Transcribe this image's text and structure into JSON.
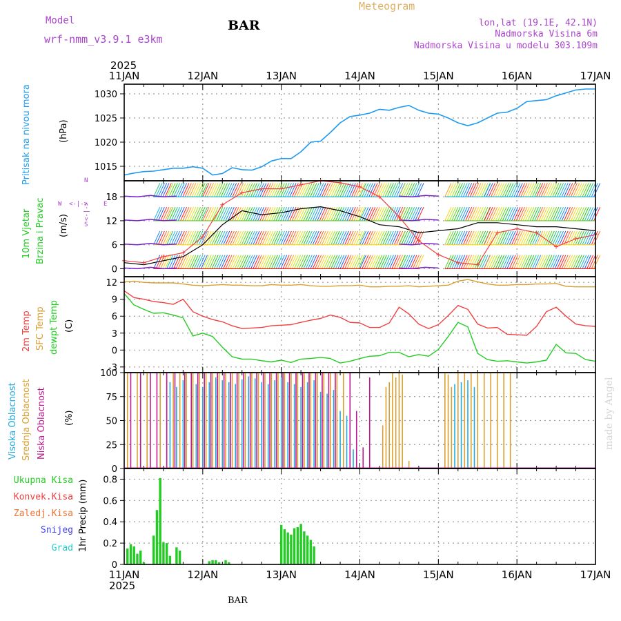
{
  "header": {
    "model_label": "Model",
    "model_name": "wrf-nmm_v3.9.1 e3km",
    "station": "BAR",
    "product": "Meteogram",
    "lonlat": "lon,lat (19.1E, 42.1N)",
    "elevation": "Nadmorska Visina 6m",
    "model_elevation": "Nadmorska Visina u modelu 303.109m",
    "year_top": "2025",
    "year_bottom": "2025",
    "footer_station": "BAR",
    "watermark": "made by Angel"
  },
  "colors": {
    "pressure": "#1e9bf0",
    "t2m": "#f04040",
    "sfc": "#d9a030",
    "dew": "#22cc22",
    "high_cloud": "#22aadd",
    "mid_cloud": "#d9a030",
    "low_cloud": "#c01890",
    "precip_total": "#22cc22",
    "conv": "#f04040",
    "freezing": "#f07030",
    "snow": "#4444ee",
    "hail": "#22cccc",
    "model": "#aa44cc",
    "product": "#e0b060",
    "wind_mark": "#7a22cc",
    "speed_line": "#000000",
    "grid": "#999999",
    "frame": "#000000"
  },
  "chart_data": [
    {
      "type": "line",
      "id": "pressure",
      "ylabel_side": "Pritisak na nivou mora",
      "ylabel": "(hPa)",
      "ylim": [
        1012,
        1032
      ],
      "yticks": [
        1015,
        1020,
        1025,
        1030
      ],
      "tick_labels": [
        "11JAN",
        "12JAN",
        "13JAN",
        "14JAN",
        "15JAN",
        "16JAN",
        "17JAN"
      ],
      "x_hours": [
        0,
        3,
        6,
        9,
        12,
        15,
        18,
        21,
        24,
        27,
        30,
        33,
        36,
        39,
        42,
        45,
        48,
        51,
        54,
        57,
        60,
        63,
        66,
        69,
        72,
        75,
        78,
        81,
        84,
        87,
        90,
        93,
        96,
        99,
        102,
        105,
        108,
        111,
        114,
        117,
        120,
        123,
        126,
        129,
        132,
        135,
        138,
        141,
        144
      ],
      "series": [
        {
          "name": "Pritisak",
          "values": [
            1013.2,
            1013.6,
            1013.9,
            1014.0,
            1014.3,
            1014.6,
            1014.6,
            1014.9,
            1014.6,
            1013.2,
            1013.5,
            1014.7,
            1014.3,
            1014.2,
            1014.9,
            1016.1,
            1016.6,
            1016.6,
            1018.0,
            1020.0,
            1020.2,
            1022.0,
            1024.0,
            1025.3,
            1025.6,
            1026.0,
            1026.8,
            1026.6,
            1027.2,
            1027.6,
            1026.6,
            1026.0,
            1025.8,
            1025.0,
            1024.0,
            1023.4,
            1024.0,
            1025.0,
            1026.0,
            1026.2,
            1027.0,
            1028.4,
            1028.6,
            1028.8,
            1029.6,
            1030.2,
            1030.8,
            1031.0,
            1031.0
          ]
        }
      ]
    },
    {
      "type": "barbs",
      "id": "wind",
      "ylabel_side": [
        "10m Vjetar",
        "Brzina i Pravac"
      ],
      "ylabel": "(m/s)",
      "compass": {
        "n": "N",
        "w": "W",
        "e": "E",
        "s": "S",
        "glyph_h": "<-|->",
        "glyph_v": "<-|->"
      },
      "ylim": [
        -2,
        22
      ],
      "yticks": [
        0,
        6,
        12,
        18
      ],
      "levels": [
        0,
        6,
        12,
        18
      ],
      "x_hours": [
        0,
        6,
        12,
        18,
        24,
        30,
        36,
        42,
        48,
        54,
        60,
        66,
        72,
        78,
        84,
        90,
        96,
        102,
        108,
        114,
        120,
        126,
        132,
        138,
        144
      ],
      "speed": [
        1.5,
        1.0,
        2.0,
        3.0,
        6.0,
        11.0,
        14.5,
        13.5,
        14.0,
        15.0,
        15.5,
        14.5,
        13.0,
        11.0,
        10.5,
        9.0,
        9.5,
        10.0,
        11.5,
        11.5,
        11.0,
        10.5,
        10.5,
        10.0,
        9.5
      ],
      "gust": [
        2.0,
        1.5,
        3.0,
        4.0,
        8.0,
        16.0,
        19.0,
        20.0,
        20.0,
        21.0,
        22.0,
        21.5,
        20.5,
        18.0,
        13.0,
        7.0,
        3.5,
        1.5,
        1.0,
        9.0,
        10.0,
        9.0,
        5.5,
        7.5,
        8.5
      ],
      "barb_color_sequence": [
        "#ff1a1a",
        "#ff5a1a",
        "#ff9a1a",
        "#ffd21a",
        "#d2e61a",
        "#9ae61a",
        "#5ad21a",
        "#1ac81a",
        "#1ac86e",
        "#1ab4d2",
        "#1a8cf0",
        "#1a5af0"
      ],
      "active_windows": [
        [
          9,
          13
        ],
        [
          13,
          24
        ],
        [
          24,
          72
        ],
        [
          72,
          84
        ],
        [
          84,
          90
        ],
        [
          98,
          110
        ],
        [
          110,
          126
        ],
        [
          126,
          144
        ]
      ]
    },
    {
      "type": "line",
      "id": "temperature",
      "ylabel_side": [
        "2m Temp",
        "SFC Temp",
        "dewpt Temp"
      ],
      "ylabel": "(C)",
      "ylim": [
        -4,
        13
      ],
      "yticks": [
        -3,
        0,
        3,
        6,
        9,
        12
      ],
      "x_hours": [
        0,
        3,
        6,
        9,
        12,
        15,
        18,
        21,
        24,
        27,
        30,
        33,
        36,
        39,
        42,
        45,
        48,
        51,
        54,
        57,
        60,
        63,
        66,
        69,
        72,
        75,
        78,
        81,
        84,
        87,
        90,
        93,
        96,
        99,
        102,
        105,
        108,
        111,
        114,
        117,
        120,
        123,
        126,
        129,
        132,
        135,
        138,
        141,
        144
      ],
      "series": [
        {
          "name": "SFC Temp",
          "key": "sfc",
          "values": [
            12.1,
            12.2,
            12.0,
            11.9,
            11.9,
            11.9,
            11.7,
            11.5,
            11.4,
            11.5,
            11.6,
            11.5,
            11.5,
            11.4,
            11.4,
            11.6,
            11.5,
            11.5,
            11.6,
            11.4,
            11.3,
            11.3,
            11.4,
            11.4,
            11.5,
            11.2,
            11.2,
            11.3,
            11.3,
            11.4,
            11.2,
            11.3,
            11.4,
            11.5,
            12.2,
            12.5,
            12.1,
            11.7,
            11.5,
            11.5,
            11.6,
            11.6,
            11.7,
            11.7,
            11.8,
            11.3,
            11.2,
            11.2,
            11.2
          ]
        },
        {
          "name": "2m Temp",
          "key": "t2m",
          "values": [
            10.5,
            9.3,
            9.0,
            8.6,
            8.4,
            8.1,
            9.0,
            6.8,
            6.0,
            5.4,
            5.0,
            4.3,
            3.8,
            3.9,
            4.0,
            4.3,
            4.4,
            4.5,
            4.9,
            5.3,
            5.6,
            6.2,
            5.8,
            4.9,
            4.8,
            4.0,
            4.0,
            4.8,
            7.6,
            6.4,
            4.6,
            3.8,
            4.5,
            6.1,
            7.9,
            7.2,
            4.6,
            3.9,
            4.0,
            2.8,
            2.7,
            2.6,
            4.2,
            6.8,
            7.6,
            6.0,
            4.6,
            4.3,
            4.2
          ]
        },
        {
          "name": "dewpt Temp",
          "key": "dew",
          "values": [
            10.0,
            8.0,
            7.2,
            6.5,
            6.6,
            6.2,
            5.7,
            2.5,
            3.0,
            2.4,
            0.5,
            -1.2,
            -1.6,
            -1.6,
            -1.9,
            -2.1,
            -1.8,
            -2.2,
            -1.6,
            -1.5,
            -1.3,
            -1.5,
            -2.3,
            -2.0,
            -1.5,
            -1.1,
            -1.0,
            -0.4,
            -0.4,
            -1.2,
            -0.8,
            -1.1,
            0.1,
            2.4,
            4.9,
            4.1,
            -0.6,
            -1.7,
            -2.0,
            -1.9,
            -2.1,
            -2.3,
            -2.1,
            -1.8,
            1.0,
            -0.5,
            -0.6,
            -1.7,
            -2.0
          ]
        }
      ]
    },
    {
      "type": "bar",
      "id": "cloud",
      "ylabel_side": [
        "Visoka Oblacnost",
        "Srednja Oblacnost",
        "Niska Oblacnost"
      ],
      "ylabel": "(%)",
      "ylim": [
        0,
        100
      ],
      "yticks": [
        0,
        25,
        50,
        75,
        100
      ],
      "series": [
        {
          "name": "Visoka Oblacnost",
          "key": "high_cloud",
          "hours": [
            14,
            16,
            18,
            22,
            24,
            26,
            28,
            30,
            32,
            34,
            36,
            38,
            40,
            42,
            44,
            46,
            48,
            50,
            52,
            54,
            56,
            58,
            60,
            62,
            64,
            66,
            68,
            70,
            101,
            103,
            105,
            107
          ],
          "values": [
            90,
            85,
            92,
            88,
            85,
            90,
            95,
            92,
            90,
            88,
            93,
            96,
            94,
            90,
            88,
            92,
            95,
            90,
            88,
            85,
            90,
            92,
            80,
            78,
            82,
            60,
            55,
            20,
            88,
            90,
            92,
            85
          ]
        },
        {
          "name": "Srednja Oblacnost",
          "key": "mid_cloud",
          "hours": [
            1,
            4,
            7,
            11,
            15,
            17,
            19,
            21,
            23,
            25,
            27,
            29,
            31,
            33,
            35,
            37,
            39,
            41,
            43,
            45,
            47,
            49,
            51,
            53,
            55,
            57,
            59,
            61,
            63,
            65,
            67,
            79,
            80,
            81,
            82,
            83,
            84,
            85,
            87,
            98,
            99,
            100,
            102,
            104,
            106,
            108,
            110,
            112,
            114,
            116,
            118
          ],
          "values": [
            100,
            100,
            100,
            100,
            100,
            100,
            100,
            100,
            100,
            100,
            100,
            100,
            100,
            100,
            100,
            100,
            100,
            100,
            100,
            100,
            100,
            100,
            100,
            100,
            100,
            100,
            100,
            100,
            100,
            100,
            100,
            45,
            85,
            90,
            100,
            95,
            100,
            98,
            8,
            100,
            98,
            85,
            100,
            100,
            100,
            100,
            100,
            100,
            100,
            100,
            100
          ]
        },
        {
          "name": "Niska Oblacnost",
          "key": "low_cloud",
          "hours": [
            2,
            5,
            8,
            10,
            13,
            15.5,
            18.5,
            20.5,
            22.5,
            24.5,
            26.5,
            28.5,
            30.5,
            32.5,
            34.5,
            36.5,
            38.5,
            40.5,
            42.5,
            44.5,
            46.5,
            48.5,
            50.5,
            52.5,
            54.5,
            56.5,
            58.5,
            60.5,
            62.5,
            64.5,
            69,
            71,
            73,
            75
          ],
          "values": [
            100,
            100,
            100,
            100,
            100,
            100,
            100,
            100,
            100,
            100,
            100,
            100,
            100,
            100,
            100,
            100,
            100,
            100,
            100,
            100,
            100,
            100,
            100,
            100,
            100,
            100,
            100,
            100,
            100,
            100,
            100,
            60,
            22,
            95
          ]
        }
      ]
    },
    {
      "type": "bar",
      "id": "precip",
      "ylabel": "1hr Precip (mm)",
      "legend": [
        "Ukupna Kisa",
        "Konvek.Kisa",
        "Zaledj.Kisa",
        "Snijeg",
        "Grad"
      ],
      "ylim": [
        0,
        0.9
      ],
      "yticks": [
        0,
        0.2,
        0.4,
        0.6,
        0.8
      ],
      "ytick_labels": [
        "0",
        "0.2",
        "0.4",
        "0.6",
        "0.8"
      ],
      "tick_labels": [
        "11JAN",
        "12JAN",
        "13JAN",
        "14JAN",
        "15JAN",
        "16JAN",
        "17JAN"
      ],
      "hours": [
        1,
        2,
        3,
        4,
        5,
        6,
        9,
        10,
        11,
        12,
        13,
        14,
        16,
        17,
        26,
        27,
        28,
        29,
        31,
        32,
        48,
        49,
        50,
        51,
        52,
        53,
        54,
        55,
        56,
        57,
        58
      ],
      "values": [
        0.15,
        0.19,
        0.17,
        0.1,
        0.13,
        0.02,
        0.27,
        0.51,
        0.81,
        0.21,
        0.2,
        0.08,
        0.16,
        0.13,
        0.03,
        0.04,
        0.04,
        0.02,
        0.04,
        0.02,
        0.37,
        0.33,
        0.3,
        0.28,
        0.34,
        0.35,
        0.38,
        0.31,
        0.27,
        0.23,
        0.17
      ]
    }
  ]
}
